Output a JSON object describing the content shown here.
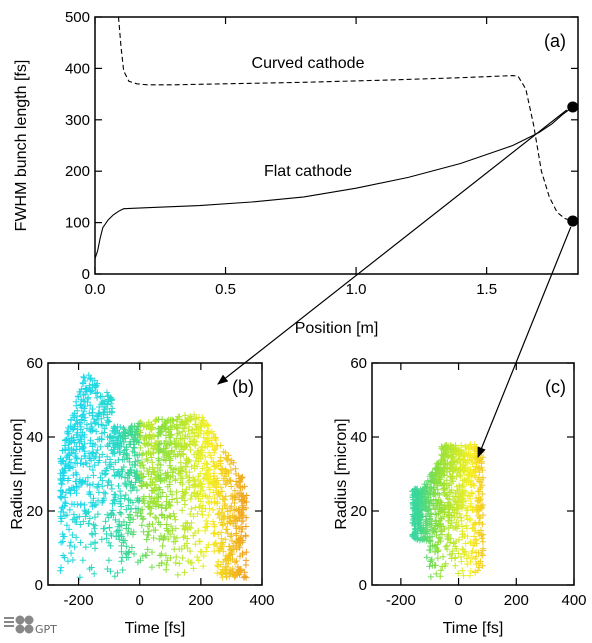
{
  "chart_data": [
    {
      "type": "line",
      "panel_label": "(a)",
      "xlabel": "Position [m]",
      "ylabel": "FWHM bunch length [fs]",
      "xlim": [
        0,
        1.85
      ],
      "ylim": [
        0,
        500
      ],
      "xticks": [
        "0.0",
        "0.5",
        "1.0",
        "1.5"
      ],
      "xtick_values": [
        0,
        0.5,
        1.0,
        1.5
      ],
      "yticks": [
        "0",
        "100",
        "200",
        "300",
        "400",
        "500"
      ],
      "ytick_values": [
        0,
        100,
        200,
        300,
        400,
        500
      ],
      "series": [
        {
          "name": "Flat cathode",
          "style": "solid",
          "x": [
            0,
            0.01,
            0.02,
            0.03,
            0.05,
            0.07,
            0.09,
            0.11,
            0.2,
            0.4,
            0.6,
            0.8,
            1.0,
            1.2,
            1.4,
            1.6,
            1.7,
            1.75,
            1.79,
            1.83
          ],
          "y": [
            30,
            45,
            70,
            90,
            105,
            115,
            122,
            127,
            129,
            133,
            140,
            150,
            167,
            188,
            215,
            250,
            275,
            292,
            310,
            325
          ]
        },
        {
          "name": "Curved cathode",
          "style": "dashed",
          "x": [
            0.09,
            0.1,
            0.11,
            0.13,
            0.16,
            0.2,
            0.3,
            0.5,
            0.8,
            1.1,
            1.4,
            1.6,
            1.62,
            1.65,
            1.68,
            1.71,
            1.74,
            1.77,
            1.8,
            1.83
          ],
          "y": [
            500,
            440,
            395,
            375,
            370,
            368,
            368,
            370,
            373,
            377,
            382,
            386,
            385,
            360,
            290,
            200,
            150,
            120,
            108,
            103
          ]
        }
      ],
      "endpoints": [
        {
          "x": 1.83,
          "y": 325
        },
        {
          "x": 1.83,
          "y": 103
        }
      ]
    },
    {
      "type": "scatter",
      "panel_label": "(b)",
      "xlabel": "Time [fs]",
      "ylabel": "Radius [micron]",
      "xlim": [
        -300,
        400
      ],
      "ylim": [
        0,
        60
      ],
      "xticks": [
        "-200",
        "0",
        "200",
        "400"
      ],
      "xtick_values": [
        -200,
        0,
        200,
        400
      ],
      "yticks": [
        "0",
        "20",
        "40",
        "60"
      ],
      "ytick_values": [
        0,
        20,
        40,
        60
      ],
      "extent": {
        "tmin": -260,
        "tmax": 350,
        "peak_t": -180,
        "peak_r": 58,
        "upper_r_right": 46
      },
      "marker": "+"
    },
    {
      "type": "scatter",
      "panel_label": "(c)",
      "xlabel": "Time [fs]",
      "ylabel": "Radius [micron]",
      "xlim": [
        -300,
        400
      ],
      "ylim": [
        0,
        60
      ],
      "xticks": [
        "-200",
        "0",
        "200",
        "400"
      ],
      "xtick_values": [
        -200,
        0,
        200,
        400
      ],
      "yticks": [
        "0",
        "20",
        "40",
        "60"
      ],
      "ytick_values": [
        0,
        20,
        40,
        60
      ],
      "extent": {
        "tmin": -160,
        "tmax": 85,
        "upper_r": 38
      },
      "marker": "+"
    }
  ],
  "logo_text": "GPT",
  "colors": {
    "cyan": "#1fd8e8",
    "green": "#8ee03a",
    "yellow": "#f5f022",
    "orange": "#f0a020",
    "axis": "#000000"
  }
}
